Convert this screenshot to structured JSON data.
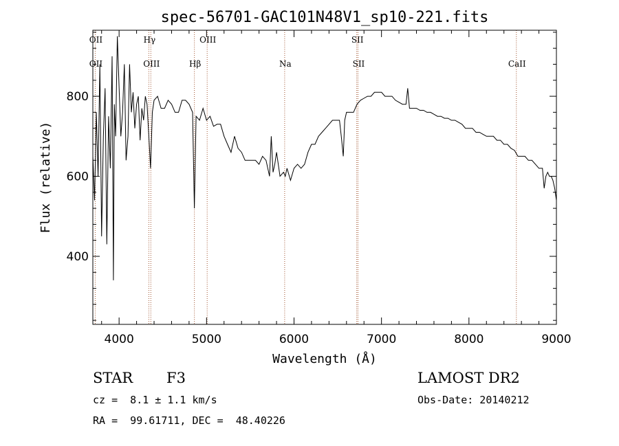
{
  "chart_data": {
    "type": "line",
    "title": "spec-56701-GAC101N48V1_sp10-221.fits",
    "xlabel": "Wavelength (Å)",
    "ylabel": "Flux (relative)",
    "xlim": [
      3700,
      9000
    ],
    "ylim": [
      230,
      965
    ],
    "x_ticks": [
      4000,
      5000,
      6000,
      7000,
      8000,
      9000
    ],
    "y_ticks": [
      400,
      600,
      800
    ],
    "grid": false,
    "line_color": "#000000",
    "marker_color": "#a0522d",
    "lines": [
      {
        "label": "OII",
        "x": 3727,
        "pos": "top"
      },
      {
        "label": "OII",
        "x": 3727,
        "pos": "bottom"
      },
      {
        "label": "Hγ",
        "x": 4340,
        "pos": "top"
      },
      {
        "label": "OIII",
        "x": 4363,
        "pos": "bottom"
      },
      {
        "label": "Hβ",
        "x": 4861,
        "pos": "bottom"
      },
      {
        "label": "OIII",
        "x": 5007,
        "pos": "top"
      },
      {
        "label": "Na",
        "x": 5893,
        "pos": "bottom"
      },
      {
        "label": "SII",
        "x": 6717,
        "pos": "top"
      },
      {
        "label": "SII",
        "x": 6731,
        "pos": "bottom"
      },
      {
        "label": "CaII",
        "x": 8542,
        "pos": "bottom"
      }
    ],
    "series": [
      {
        "x": [
          3700,
          3720,
          3740,
          3760,
          3780,
          3800,
          3820,
          3840,
          3860,
          3880,
          3900,
          3920,
          3935,
          3945,
          3960,
          3980,
          4000,
          4020,
          4040,
          4060,
          4080,
          4102,
          4120,
          4140,
          4160,
          4180,
          4200,
          4220,
          4240,
          4260,
          4280,
          4300,
          4320,
          4340,
          4360,
          4380,
          4400,
          4440,
          4480,
          4520,
          4560,
          4600,
          4640,
          4680,
          4720,
          4760,
          4800,
          4840,
          4861,
          4880,
          4920,
          4960,
          5000,
          5040,
          5080,
          5120,
          5160,
          5200,
          5240,
          5280,
          5320,
          5360,
          5400,
          5440,
          5480,
          5520,
          5560,
          5600,
          5640,
          5680,
          5720,
          5740,
          5760,
          5780,
          5800,
          5840,
          5880,
          5900,
          5920,
          5960,
          6000,
          6040,
          6080,
          6120,
          6160,
          6200,
          6240,
          6280,
          6320,
          6360,
          6400,
          6440,
          6480,
          6520,
          6540,
          6563,
          6580,
          6600,
          6640,
          6680,
          6720,
          6760,
          6800,
          6840,
          6880,
          6920,
          6960,
          7000,
          7040,
          7080,
          7120,
          7160,
          7200,
          7240,
          7280,
          7300,
          7320,
          7360,
          7400,
          7440,
          7480,
          7520,
          7560,
          7600,
          7640,
          7680,
          7720,
          7760,
          7800,
          7840,
          7880,
          7920,
          7960,
          8000,
          8040,
          8080,
          8120,
          8160,
          8200,
          8240,
          8280,
          8320,
          8360,
          8400,
          8440,
          8480,
          8520,
          8560,
          8600,
          8640,
          8680,
          8720,
          8760,
          8800,
          8840,
          8860,
          8880,
          8900,
          8920,
          8940,
          8960,
          8980,
          9000
        ],
        "y": [
          650,
          540,
          760,
          600,
          880,
          450,
          700,
          820,
          430,
          750,
          620,
          900,
          340,
          780,
          700,
          950,
          820,
          700,
          760,
          880,
          640,
          700,
          880,
          760,
          810,
          720,
          780,
          800,
          690,
          770,
          740,
          800,
          780,
          700,
          620,
          760,
          790,
          800,
          770,
          770,
          790,
          780,
          760,
          760,
          790,
          790,
          780,
          760,
          520,
          750,
          740,
          770,
          740,
          750,
          725,
          730,
          730,
          700,
          680,
          660,
          700,
          670,
          660,
          640,
          640,
          640,
          640,
          630,
          650,
          640,
          600,
          700,
          610,
          630,
          660,
          600,
          610,
          600,
          620,
          590,
          620,
          630,
          620,
          630,
          660,
          680,
          680,
          700,
          710,
          720,
          730,
          740,
          740,
          740,
          700,
          650,
          740,
          760,
          760,
          760,
          780,
          790,
          795,
          800,
          800,
          810,
          810,
          810,
          800,
          800,
          800,
          790,
          785,
          780,
          780,
          820,
          770,
          770,
          770,
          765,
          765,
          760,
          760,
          755,
          750,
          750,
          745,
          745,
          740,
          740,
          735,
          730,
          720,
          720,
          720,
          710,
          710,
          705,
          700,
          700,
          700,
          690,
          690,
          680,
          680,
          670,
          665,
          650,
          650,
          650,
          640,
          640,
          630,
          620,
          620,
          570,
          600,
          610,
          600,
          600,
          590,
          570,
          540
        ]
      }
    ]
  },
  "info": {
    "object_class": "STAR",
    "subclass": "F3",
    "redshift": "cz =  8.1 ± 1.1 km/s",
    "coords": "RA =  99.61711, DEC =  48.40226",
    "survey": "LAMOST DR2",
    "obs_date": "Obs-Date: 20140212"
  }
}
